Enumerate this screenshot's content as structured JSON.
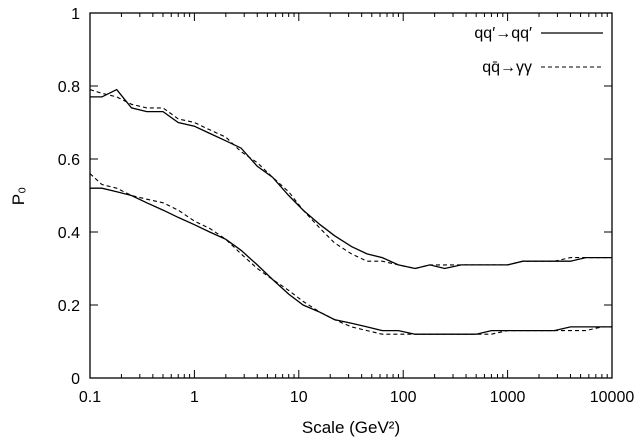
{
  "chart_data": {
    "type": "line",
    "xlabel": "Scale (GeV²)",
    "ylabel": "P₀",
    "xscale": "log",
    "xlim": [
      0.1,
      10000
    ],
    "ylim": [
      0,
      1
    ],
    "xticks": [
      0.1,
      1,
      10,
      100,
      1000,
      10000
    ],
    "xtick_labels": [
      "0.1",
      "1",
      "10",
      "100",
      "1000",
      "10000"
    ],
    "yticks": [
      0,
      0.2,
      0.4,
      0.6,
      0.8,
      1
    ],
    "ytick_labels": [
      "0",
      "0.2",
      "0.4",
      "0.6",
      "0.8",
      "1"
    ],
    "grid": false,
    "legend_position": "top-right",
    "legend": [
      {
        "label": "qq′→qq′",
        "style": "solid"
      },
      {
        "label": "qq̄→γγ",
        "style": "dashed"
      }
    ],
    "series": [
      {
        "legend_index": 0,
        "style": "solid",
        "x": [
          0.1,
          0.13,
          0.18,
          0.25,
          0.35,
          0.5,
          0.7,
          1,
          1.4,
          2,
          2.8,
          4,
          5.6,
          8,
          11,
          16,
          22,
          32,
          45,
          63,
          90,
          130,
          180,
          250,
          360,
          500,
          700,
          1000,
          1400,
          2000,
          2800,
          4000,
          5600,
          8000,
          10000
        ],
        "y": [
          0.77,
          0.77,
          0.79,
          0.74,
          0.73,
          0.73,
          0.7,
          0.69,
          0.67,
          0.65,
          0.63,
          0.58,
          0.55,
          0.5,
          0.46,
          0.42,
          0.39,
          0.36,
          0.34,
          0.33,
          0.31,
          0.3,
          0.31,
          0.3,
          0.31,
          0.31,
          0.31,
          0.31,
          0.32,
          0.32,
          0.32,
          0.32,
          0.33,
          0.33,
          0.33
        ]
      },
      {
        "legend_index": 1,
        "style": "dashed",
        "x": [
          0.1,
          0.13,
          0.18,
          0.25,
          0.35,
          0.5,
          0.7,
          1,
          1.4,
          2,
          2.8,
          4,
          5.6,
          8,
          11,
          16,
          22,
          32,
          45,
          63,
          90,
          130,
          180,
          250,
          360,
          500,
          700,
          1000,
          1400,
          2000,
          2800,
          4000,
          5600,
          8000,
          10000
        ],
        "y": [
          0.79,
          0.78,
          0.77,
          0.75,
          0.74,
          0.74,
          0.71,
          0.7,
          0.68,
          0.66,
          0.62,
          0.59,
          0.55,
          0.51,
          0.46,
          0.41,
          0.37,
          0.34,
          0.32,
          0.32,
          0.31,
          0.3,
          0.31,
          0.31,
          0.31,
          0.31,
          0.31,
          0.31,
          0.32,
          0.32,
          0.32,
          0.33,
          0.33,
          0.33,
          0.33
        ]
      },
      {
        "legend_index": 0,
        "style": "solid",
        "x": [
          0.1,
          0.13,
          0.18,
          0.25,
          0.35,
          0.5,
          0.7,
          1,
          1.4,
          2,
          2.8,
          4,
          5.6,
          8,
          11,
          16,
          22,
          32,
          45,
          63,
          90,
          130,
          180,
          250,
          360,
          500,
          700,
          1000,
          1400,
          2000,
          2800,
          4000,
          5600,
          8000,
          10000
        ],
        "y": [
          0.52,
          0.52,
          0.51,
          0.5,
          0.48,
          0.46,
          0.44,
          0.42,
          0.4,
          0.38,
          0.35,
          0.31,
          0.27,
          0.23,
          0.2,
          0.18,
          0.16,
          0.15,
          0.14,
          0.13,
          0.13,
          0.12,
          0.12,
          0.12,
          0.12,
          0.12,
          0.13,
          0.13,
          0.13,
          0.13,
          0.13,
          0.14,
          0.14,
          0.14,
          0.14
        ]
      },
      {
        "legend_index": 1,
        "style": "dashed",
        "x": [
          0.1,
          0.13,
          0.18,
          0.25,
          0.35,
          0.5,
          0.7,
          1,
          1.4,
          2,
          2.8,
          4,
          5.6,
          8,
          11,
          16,
          22,
          32,
          45,
          63,
          90,
          130,
          180,
          250,
          360,
          500,
          700,
          1000,
          1400,
          2000,
          2800,
          4000,
          5600,
          8000,
          10000
        ],
        "y": [
          0.56,
          0.53,
          0.52,
          0.5,
          0.49,
          0.48,
          0.46,
          0.43,
          0.41,
          0.38,
          0.34,
          0.3,
          0.27,
          0.24,
          0.21,
          0.18,
          0.16,
          0.14,
          0.13,
          0.12,
          0.12,
          0.12,
          0.12,
          0.12,
          0.12,
          0.12,
          0.12,
          0.13,
          0.13,
          0.13,
          0.13,
          0.13,
          0.13,
          0.14,
          0.14
        ]
      }
    ]
  }
}
